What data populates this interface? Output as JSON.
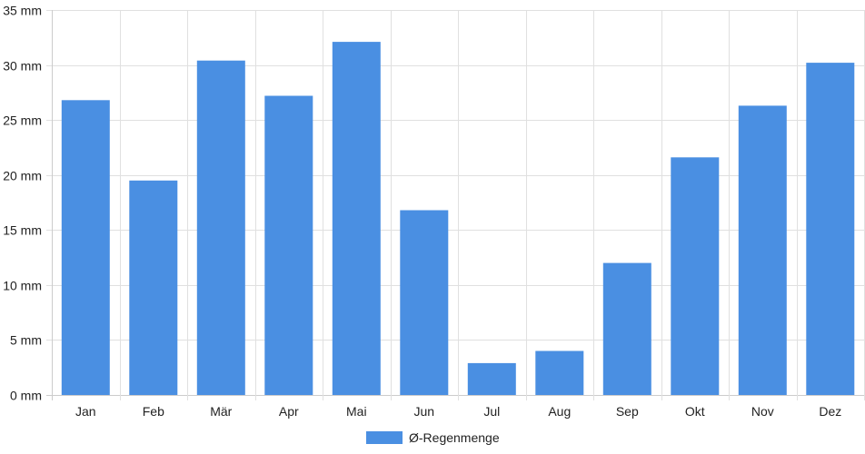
{
  "chart_data": {
    "type": "bar",
    "title": "",
    "xlabel": "",
    "ylabel": "",
    "categories": [
      "Jan",
      "Feb",
      "Mär",
      "Apr",
      "Mai",
      "Jun",
      "Jul",
      "Aug",
      "Sep",
      "Okt",
      "Nov",
      "Dez"
    ],
    "series": [
      {
        "name": "Ø-Regenmenge",
        "values": [
          26.8,
          19.5,
          30.4,
          27.2,
          32.1,
          16.8,
          2.9,
          4.0,
          12.0,
          21.6,
          26.3,
          30.2
        ],
        "color": "#4a8fe2"
      }
    ],
    "ylim": [
      0,
      35
    ],
    "yticks": [
      {
        "value": 0,
        "label": "0 mm"
      },
      {
        "value": 5,
        "label": "5 mm"
      },
      {
        "value": 10,
        "label": "10 mm"
      },
      {
        "value": 15,
        "label": "15 mm"
      },
      {
        "value": 20,
        "label": "20 mm"
      },
      {
        "value": 25,
        "label": "25 mm"
      },
      {
        "value": 30,
        "label": "30 mm"
      },
      {
        "value": 35,
        "label": "35 mm"
      }
    ],
    "grid": true,
    "legend_position": "bottom-center",
    "grid_color": "#e0e0e0",
    "axis_color": "#cccccc"
  }
}
